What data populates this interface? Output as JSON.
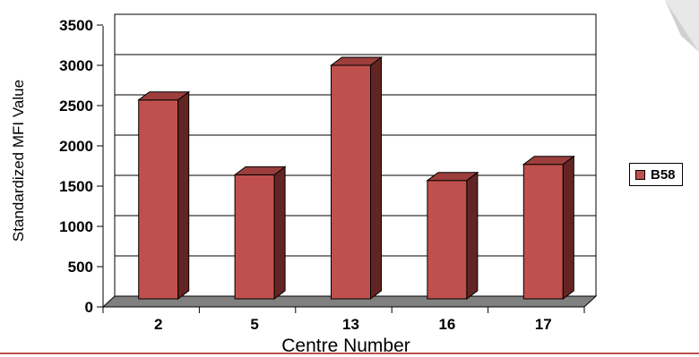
{
  "chart_data": {
    "type": "bar",
    "style": "3d-column",
    "categories": [
      "2",
      "5",
      "13",
      "16",
      "17"
    ],
    "series": [
      {
        "name": "B58",
        "values": [
          2570,
          1640,
          3000,
          1570,
          1770
        ]
      }
    ],
    "xlabel": "Centre Number",
    "ylabel": "Standardized MFI Value",
    "ylim": [
      0,
      3500
    ],
    "yticks": [
      0,
      500,
      1000,
      1500,
      2000,
      2500,
      3000,
      3500
    ],
    "grid": true,
    "legend": "right"
  },
  "colors": {
    "bar_front": "#c0504d",
    "bar_side": "#632523",
    "bar_top": "#9b3e3c",
    "floor": "#808080",
    "accent_rule": "#c0504d"
  }
}
